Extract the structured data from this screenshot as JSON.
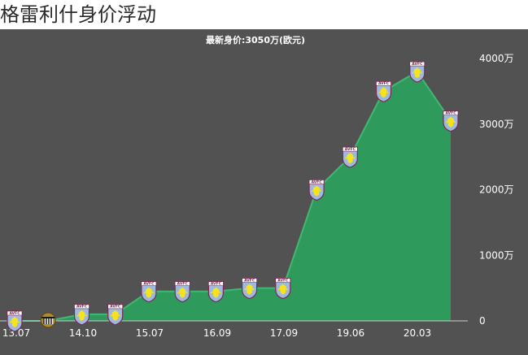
{
  "page": {
    "title": "格雷利什身价浮动"
  },
  "chart_data": {
    "type": "area",
    "subtitle": "最新身价:3050万(欧元)",
    "unit": "万",
    "x_ticks": [
      "13.07",
      "14.10",
      "15.07",
      "16.09",
      "17.09",
      "19.06",
      "20.03"
    ],
    "y_ticks": [
      "0",
      "1000万",
      "2000万",
      "3000万",
      "4000万"
    ],
    "ylim": [
      0,
      4000
    ],
    "grid": false,
    "values": [
      0,
      0,
      100,
      100,
      450,
      450,
      450,
      500,
      500,
      2000,
      2500,
      3500,
      3800,
      3050
    ],
    "markers": [
      "aston-villa-crest-icon",
      "notts-county-crest-icon",
      "aston-villa-crest-icon",
      "aston-villa-crest-icon",
      "aston-villa-crest-icon",
      "aston-villa-crest-icon",
      "aston-villa-crest-icon",
      "aston-villa-crest-icon",
      "aston-villa-crest-icon",
      "aston-villa-crest-icon",
      "aston-villa-crest-icon",
      "aston-villa-crest-icon",
      "aston-villa-crest-icon",
      "aston-villa-crest-icon"
    ],
    "colors": {
      "background": "#525252",
      "area": "#2e9a5c",
      "line": "#3fb873",
      "axis": "#cccccc",
      "villa_claret": "#7a2a52",
      "villa_blue": "#9fb8e0",
      "villa_yellow": "#f5e31b"
    }
  }
}
